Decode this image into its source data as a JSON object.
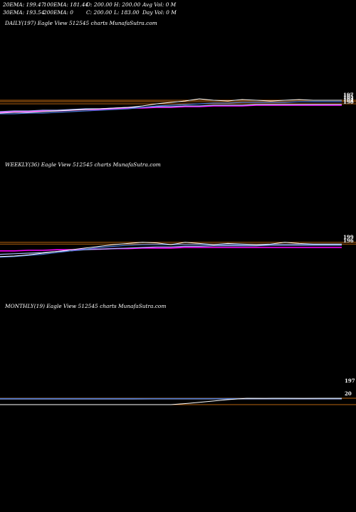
{
  "header": {
    "row1": [
      "20EMA: 199.47",
      "100EMA: 181.44",
      "O: 200.00",
      "H: 200.00",
      "Avg Vol: 0  M"
    ],
    "row2": [
      "30EMA: 193.54",
      "200EMA: 0",
      "C: 200.00",
      "L: 183.00",
      "Day Vol: 0  M"
    ]
  },
  "colors": {
    "background": "#000000",
    "price": "#ffffff",
    "ema_blue": "#4a7bd8",
    "ema_lightblue": "#aab8ff",
    "ema_magenta": "#ff00ff",
    "level": "#b8650f"
  },
  "chart_data": [
    {
      "type": "line",
      "title": "DAILY(197) Eagle   View  512545 charts MunafaSutra.com",
      "x": [
        0,
        1,
        2,
        3,
        4,
        5,
        6,
        7,
        8,
        9,
        10,
        11,
        12,
        13,
        14,
        15,
        16,
        17,
        18,
        19,
        20,
        21,
        22,
        23,
        24
      ],
      "series": [
        {
          "values": [
            179,
            180,
            180,
            181,
            182,
            183,
            184,
            185,
            186,
            187,
            189,
            192,
            194,
            196,
            199,
            197,
            196,
            198,
            197,
            196,
            197,
            198,
            197,
            197,
            197
          ]
        },
        {
          "values": [
            178,
            178,
            179,
            179,
            180,
            181,
            182,
            183,
            184,
            185,
            187,
            189,
            190,
            191,
            192,
            193,
            193,
            194,
            194,
            194,
            194,
            195,
            195,
            195,
            195
          ]
        },
        {
          "values": [
            181,
            182,
            182,
            183,
            183,
            184,
            185,
            185,
            186,
            187,
            187,
            188,
            188,
            189,
            189,
            190,
            190,
            190,
            191,
            191,
            191,
            191,
            191,
            191,
            191
          ]
        },
        {
          "values": [
            180,
            181,
            181,
            182,
            182,
            183,
            184,
            184,
            185,
            186,
            186,
            187,
            187,
            188,
            188,
            189,
            189,
            189,
            190,
            190,
            190,
            190,
            190,
            190,
            190
          ]
        }
      ],
      "levels": [
        197,
        195,
        192
      ],
      "axis_labels": [
        "197",
        "195",
        "193",
        "191",
        "190"
      ],
      "ylim": [
        170,
        210
      ]
    },
    {
      "type": "line",
      "title": "WEEKLY(36) Eagle   View  512545 charts MunafaSutra.com",
      "x": [
        0,
        1,
        2,
        3,
        4,
        5,
        6,
        7,
        8,
        9,
        10,
        11,
        12,
        13,
        14,
        15,
        16,
        17,
        18,
        19,
        20,
        21,
        22,
        23,
        24
      ],
      "series": [
        {
          "values": [
            174,
            175,
            177,
            180,
            183,
            186,
            189,
            192,
            195,
            197,
            199,
            198,
            195,
            199,
            197,
            195,
            197,
            196,
            195,
            196,
            199,
            197,
            196,
            196,
            196
          ]
        },
        {
          "values": [
            173,
            174,
            176,
            178,
            181,
            184,
            187,
            190,
            192,
            194,
            195,
            195,
            195,
            195,
            195,
            195,
            195,
            195,
            195,
            195,
            195,
            195,
            195,
            195,
            195
          ]
        },
        {
          "values": [
            178,
            179,
            180,
            181,
            183,
            184,
            186,
            187,
            188,
            189,
            190,
            191,
            191,
            192,
            192,
            193,
            193,
            193,
            193,
            194,
            194,
            194,
            194,
            194,
            194
          ]
        },
        {
          "values": [
            184,
            184,
            185,
            185,
            186,
            186,
            187,
            187,
            188,
            188,
            189,
            189,
            189,
            190,
            190,
            190,
            190,
            190,
            190,
            190,
            190,
            190,
            190,
            190,
            190
          ]
        }
      ],
      "levels": [
        199,
        196
      ],
      "axis_labels": [
        "199",
        "196"
      ],
      "ylim": [
        165,
        215
      ]
    },
    {
      "type": "line",
      "title": "MONTHLY(19) Eagle   View  512545 charts MunafaSutra.com",
      "x": [
        0,
        1,
        2,
        3,
        4,
        5,
        6,
        7,
        8,
        9,
        10,
        11,
        12,
        13,
        14,
        15,
        16,
        17,
        18
      ],
      "series": [
        {
          "values": [
            20,
            20,
            20,
            20,
            20,
            20,
            20,
            20,
            20,
            20,
            60,
            110,
            160,
            197,
            196,
            197,
            196,
            197,
            197
          ]
        },
        {
          "values": [
            190,
            190,
            190,
            190,
            190,
            190,
            190,
            191,
            191,
            191,
            191,
            191,
            191,
            192,
            192,
            192,
            192,
            192,
            192
          ]
        },
        {
          "values": [
            180,
            180,
            180,
            180,
            181,
            181,
            181,
            181,
            182,
            182,
            182,
            182,
            183,
            183,
            183,
            183,
            183,
            183,
            183
          ]
        }
      ],
      "levels": [
        200,
        20
      ],
      "axis_labels": [
        "197",
        "20"
      ],
      "ylim": [
        0,
        800
      ]
    }
  ]
}
